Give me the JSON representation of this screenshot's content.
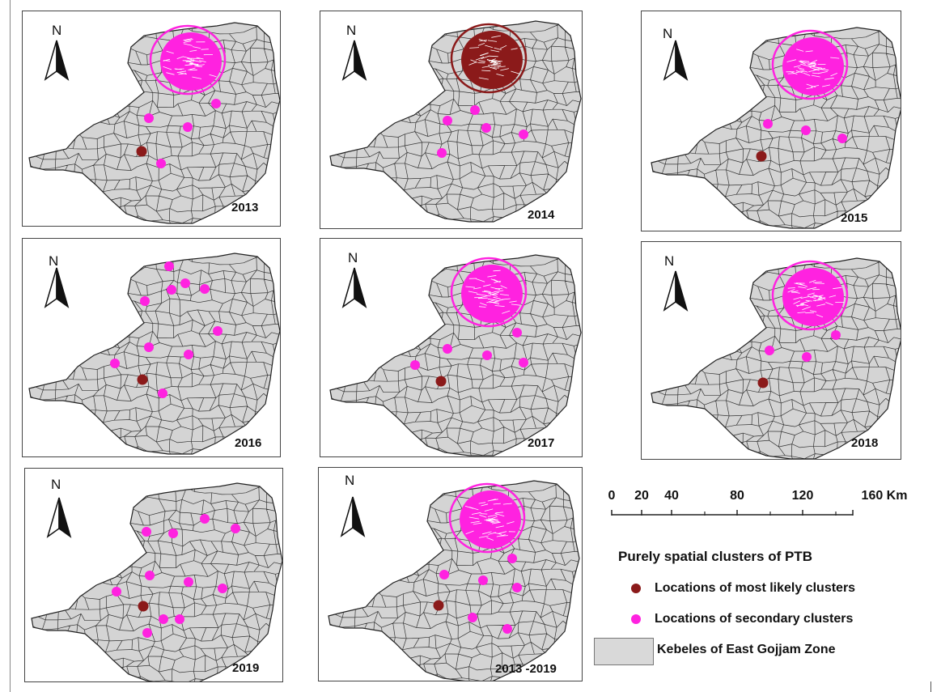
{
  "map": {
    "north_label": "N",
    "panels": [
      {
        "year": "2013",
        "big_cluster": "secondary",
        "dots": [
          [
            "secondary",
            266,
            127
          ],
          [
            "secondary",
            183,
            145
          ],
          [
            "secondary",
            231,
            156
          ],
          [
            "primary",
            174,
            186
          ],
          [
            "secondary",
            198,
            201
          ]
        ]
      },
      {
        "year": "2014",
        "big_cluster": "primary",
        "dots": [
          [
            "secondary",
            586,
            135
          ],
          [
            "secondary",
            552,
            148
          ],
          [
            "secondary",
            600,
            157
          ],
          [
            "secondary",
            646,
            165
          ],
          [
            "secondary",
            545,
            188
          ]
        ]
      },
      {
        "year": "2015",
        "big_cluster": "secondary",
        "dots": [
          [
            "secondary",
            948,
            152
          ],
          [
            "secondary",
            995,
            160
          ],
          [
            "secondary",
            1040,
            170
          ],
          [
            "primary",
            940,
            192
          ]
        ]
      },
      {
        "year": "2016",
        "big_cluster": "none",
        "dots": [
          [
            "secondary",
            208,
            328
          ],
          [
            "secondary",
            228,
            349
          ],
          [
            "secondary",
            211,
            357
          ],
          [
            "secondary",
            252,
            356
          ],
          [
            "secondary",
            178,
            371
          ],
          [
            "secondary",
            268,
            408
          ],
          [
            "secondary",
            183,
            428
          ],
          [
            "secondary",
            232,
            437
          ],
          [
            "secondary",
            141,
            448
          ],
          [
            "primary",
            175,
            468
          ],
          [
            "secondary",
            200,
            485
          ]
        ]
      },
      {
        "year": "2017",
        "big_cluster": "secondary",
        "dots": [
          [
            "secondary",
            617,
            392
          ],
          [
            "secondary",
            638,
            410
          ],
          [
            "secondary",
            552,
            430
          ],
          [
            "secondary",
            601,
            438
          ],
          [
            "secondary",
            646,
            447
          ],
          [
            "secondary",
            512,
            450
          ],
          [
            "primary",
            544,
            470
          ]
        ]
      },
      {
        "year": "2018",
        "big_cluster": "secondary",
        "dots": [
          [
            "secondary",
            1032,
            413
          ],
          [
            "secondary",
            950,
            432
          ],
          [
            "secondary",
            996,
            440
          ],
          [
            "primary",
            942,
            472
          ]
        ]
      },
      {
        "year": "2019",
        "big_cluster": "none",
        "dots": [
          [
            "secondary",
            252,
            640
          ],
          [
            "secondary",
            290,
            652
          ],
          [
            "secondary",
            180,
            656
          ],
          [
            "secondary",
            213,
            658
          ],
          [
            "secondary",
            184,
            710
          ],
          [
            "secondary",
            232,
            718
          ],
          [
            "secondary",
            274,
            726
          ],
          [
            "secondary",
            143,
            730
          ],
          [
            "primary",
            176,
            748
          ],
          [
            "secondary",
            201,
            764
          ],
          [
            "secondary",
            221,
            764
          ],
          [
            "secondary",
            181,
            781
          ]
        ]
      },
      {
        "year": "2013 -2019",
        "big_cluster": "secondary",
        "dots": [
          [
            "secondary",
            632,
            689
          ],
          [
            "secondary",
            548,
            709
          ],
          [
            "secondary",
            596,
            716
          ],
          [
            "secondary",
            638,
            725
          ],
          [
            "primary",
            541,
            747
          ],
          [
            "secondary",
            583,
            762
          ],
          [
            "secondary",
            626,
            776
          ]
        ]
      }
    ]
  },
  "scale_bar": {
    "labels": [
      "0",
      "20",
      "40",
      "80",
      "120",
      "160 Km"
    ]
  },
  "legend": {
    "title": "Purely spatial clusters of PTB",
    "items": [
      {
        "label": "Locations of most likely clusters",
        "color": "#8b1a1a"
      },
      {
        "label": "Locations of secondary clusters",
        "color": "#ff22e0"
      },
      {
        "label": "Kebeles of East Gojjam Zone",
        "color": "#d9d9d9"
      }
    ]
  },
  "colors": {
    "primary_cluster": "#8b1a1a",
    "secondary_cluster": "#ff22e0",
    "kebele_fill": "#d4d4d4"
  }
}
